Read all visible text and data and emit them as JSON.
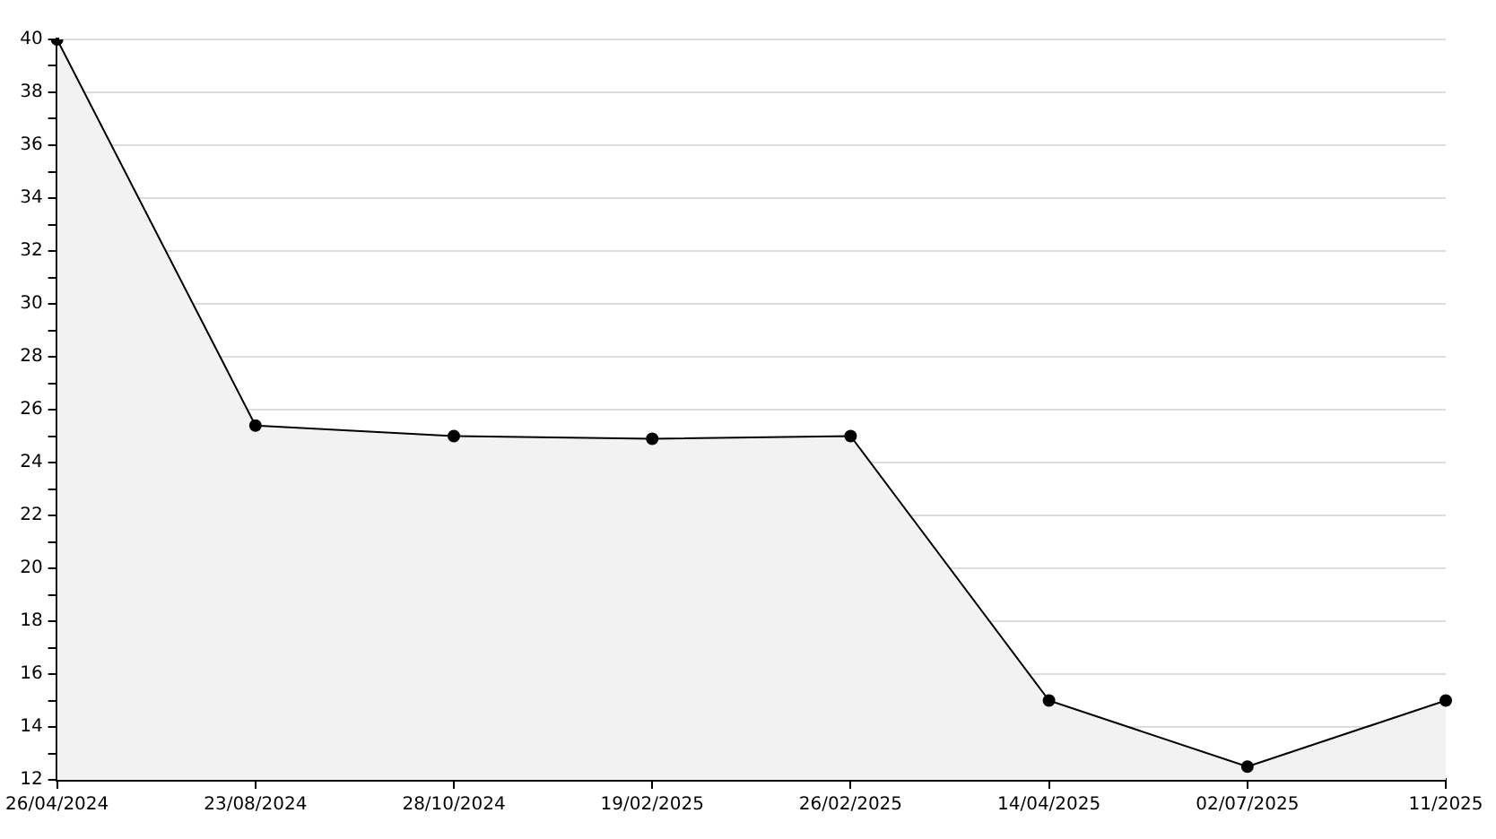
{
  "chart_data": {
    "type": "area",
    "categories": [
      "26/04/2024",
      "23/08/2024",
      "28/10/2024",
      "19/02/2025",
      "26/02/2025",
      "14/04/2025",
      "02/07/2025",
      "11/2025"
    ],
    "series": [
      {
        "color": "#000000",
        "values": [
          40,
          25.4,
          25,
          24.9,
          25,
          15,
          12.5,
          15
        ]
      }
    ],
    "ylim": [
      12,
      40
    ],
    "yticks": [
      12,
      {
        "value": 13,
        "label": null
      },
      14,
      {
        "value": 15,
        "label": null
      },
      16,
      {
        "value": 17,
        "label": null
      },
      18,
      {
        "value": 19,
        "label": null
      },
      20,
      {
        "value": 21,
        "label": null
      },
      22,
      {
        "value": 23,
        "label": null
      },
      24,
      {
        "value": 25,
        "label": null
      },
      26,
      {
        "value": 27,
        "label": null
      },
      28,
      {
        "value": 29,
        "label": null
      },
      30,
      {
        "value": 31,
        "label": null
      },
      32,
      {
        "value": 33,
        "label": null
      },
      34,
      {
        "value": 35,
        "label": null
      },
      36,
      {
        "value": 37,
        "label": null
      },
      38,
      {
        "value": 39,
        "label": null
      },
      40
    ],
    "grid": "y",
    "legend": false,
    "marker": "circle",
    "line_style": "solid"
  }
}
